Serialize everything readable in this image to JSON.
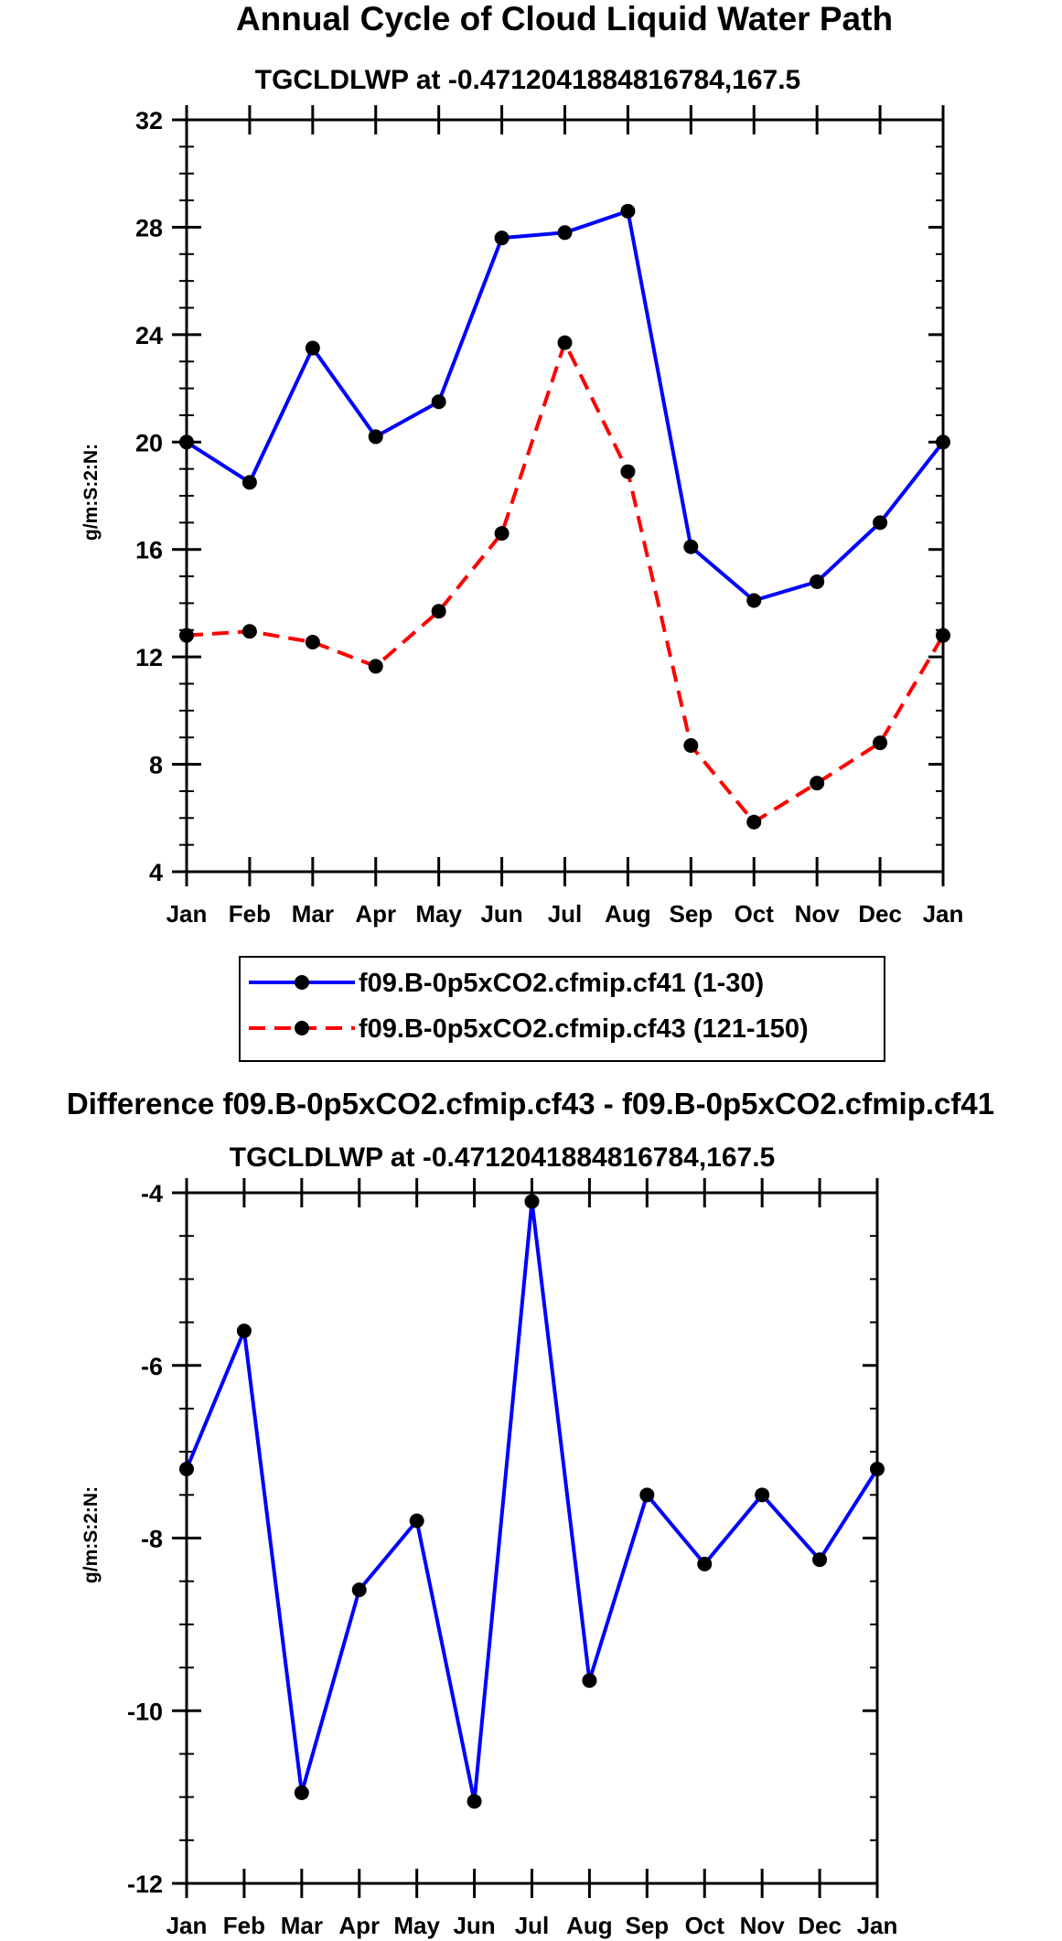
{
  "colors": {
    "axis": "#000000",
    "series1": "#0000ff",
    "series2": "#ff0000",
    "diff": "#0000ff",
    "marker": "#000000"
  },
  "chart_data": [
    {
      "type": "line",
      "title": "Annual Cycle of Cloud Liquid Water Path",
      "subtitle": "TGCLDLWP at -0.4712041884816784,167.5",
      "xlabel": "",
      "ylabel": "g/m:S:2:N:",
      "categories": [
        "Jan",
        "Feb",
        "Mar",
        "Apr",
        "May",
        "Jun",
        "Jul",
        "Aug",
        "Sep",
        "Oct",
        "Nov",
        "Dec",
        "Jan"
      ],
      "ylim": [
        4,
        32
      ],
      "yticks": [
        4,
        8,
        12,
        16,
        20,
        24,
        28,
        32
      ],
      "series": [
        {
          "name": "f09.B-0p5xCO2.cfmip.cf41 (1-30)",
          "style": "solid",
          "values": [
            20.0,
            18.5,
            23.5,
            20.2,
            21.5,
            27.6,
            27.8,
            28.6,
            16.1,
            14.1,
            14.8,
            17.0,
            20.0
          ]
        },
        {
          "name": "f09.B-0p5xCO2.cfmip.cf43 (121-150)",
          "style": "dashed",
          "values": [
            12.8,
            12.95,
            12.55,
            11.65,
            13.7,
            16.6,
            23.7,
            18.9,
            8.7,
            5.85,
            7.3,
            8.8,
            12.8
          ]
        }
      ],
      "legend": "bottom"
    },
    {
      "type": "line",
      "title": "Difference f09.B-0p5xCO2.cfmip.cf43 - f09.B-0p5xCO2.cfmip.cf41",
      "subtitle": "TGCLDLWP at -0.4712041884816784,167.5",
      "xlabel": "",
      "ylabel": "g/m:S:2:N:",
      "categories": [
        "Jan",
        "Feb",
        "Mar",
        "Apr",
        "May",
        "Jun",
        "Jul",
        "Aug",
        "Sep",
        "Oct",
        "Nov",
        "Dec",
        "Jan"
      ],
      "ylim": [
        -12,
        -4
      ],
      "yticks": [
        -12,
        -10,
        -8,
        -6,
        -4
      ],
      "series": [
        {
          "name": "difference",
          "style": "solid",
          "values": [
            -7.2,
            -5.6,
            -10.95,
            -8.6,
            -7.8,
            -11.05,
            -4.1,
            -9.65,
            -7.5,
            -8.3,
            -7.5,
            -8.25,
            -7.2
          ]
        }
      ]
    }
  ]
}
